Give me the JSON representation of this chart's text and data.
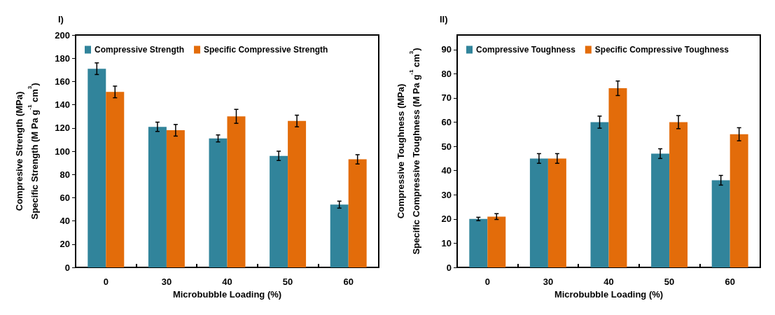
{
  "chart_data": [
    {
      "type": "bar",
      "title": "I)",
      "xlabel": "Microbubble Loading (%)",
      "ylabel": "Compresive Strength (MPa)\nSpecific Strength (M Pa g$^{-1}$ cm$^{3}$)",
      "categories": [
        "0",
        "30",
        "40",
        "50",
        "60"
      ],
      "ylim": [
        0,
        200
      ],
      "yticks": [
        0,
        20,
        40,
        60,
        80,
        100,
        120,
        140,
        160,
        180,
        200
      ],
      "grid": false,
      "legend": "top",
      "series": [
        {
          "name": "Compressive Strength",
          "color": "#31849b",
          "values": [
            171,
            121,
            111,
            96,
            54
          ],
          "errors": [
            5,
            4,
            3,
            4,
            3
          ]
        },
        {
          "name": "Specific Compressive Strength",
          "color": "#e36c0a",
          "values": [
            151,
            118,
            130,
            126,
            93
          ],
          "errors": [
            5,
            5,
            6,
            5,
            4
          ]
        }
      ]
    },
    {
      "type": "bar",
      "title": "II)",
      "xlabel": "Microbubble Loading (%)",
      "ylabel": "Compressive Toughness (MPa)\nSpecific Compressive Toughness (M Pa g$^{-1}$ cm$^{3}$)",
      "categories": [
        "0",
        "30",
        "40",
        "50",
        "60"
      ],
      "ylim": [
        0,
        96
      ],
      "yticks": [
        0,
        10,
        20,
        30,
        40,
        50,
        60,
        70,
        80,
        90
      ],
      "grid": false,
      "legend": "top",
      "series": [
        {
          "name": "Compressive Toughness",
          "color": "#31849b",
          "values": [
            20,
            45,
            60,
            47,
            36
          ],
          "errors": [
            0.7,
            2,
            2.5,
            2,
            2
          ]
        },
        {
          "name": "Specific Compressive Toughness",
          "color": "#e36c0a",
          "values": [
            21,
            45,
            74,
            60,
            55
          ],
          "errors": [
            1.2,
            2,
            3,
            2.7,
            2.7
          ]
        }
      ]
    }
  ]
}
